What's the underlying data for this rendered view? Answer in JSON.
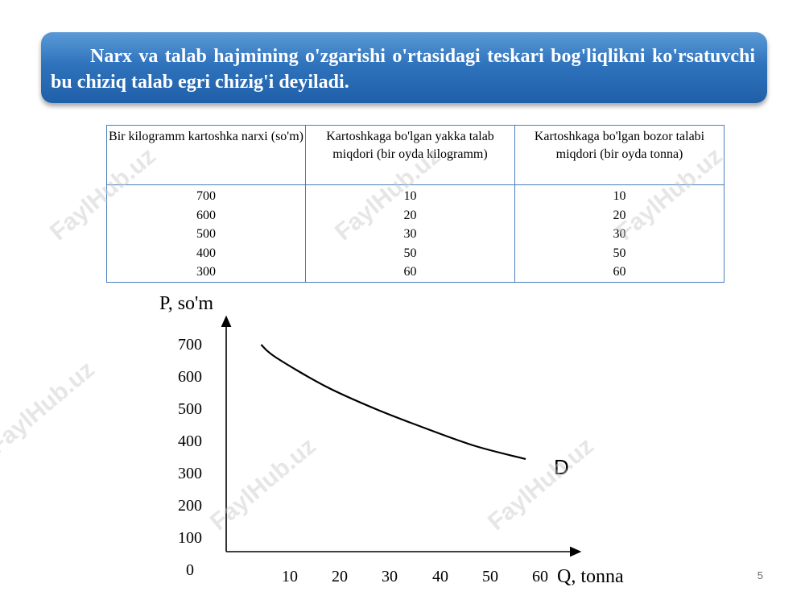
{
  "header": {
    "text": "Narx va talab hajmining o'zgarishi o'rtasidagi teskari bog'liqlikni ko'rsatuvchi bu chiziq talab egri chizig'i deyiladi."
  },
  "table": {
    "headers": [
      "Bir kilogramm kartoshka narxi (so'm)",
      "Kartoshkaga bo'lgan yakka talab miqdori (bir oyda kilogramm)",
      "Kartoshkaga bo'lgan bozor talabi miqdori (bir oyda tonna)"
    ],
    "columns": [
      [
        "700",
        "600",
        "500",
        "400",
        "300"
      ],
      [
        "10",
        "20",
        "30",
        "50",
        "60"
      ],
      [
        "10",
        "20",
        "30",
        "50",
        "60"
      ]
    ]
  },
  "chart_data": {
    "type": "line",
    "ylabel": "P, so'm",
    "xlabel": "Q, tonna",
    "x_ticks": [
      "10",
      "20",
      "30",
      "40",
      "50",
      "60"
    ],
    "y_ticks": [
      "0",
      "100",
      "200",
      "300",
      "400",
      "500",
      "600",
      "700"
    ],
    "xlim": [
      0,
      66
    ],
    "ylim": [
      0,
      800
    ],
    "series": [
      {
        "name": "D",
        "x": [
          7,
          10,
          20,
          30,
          40,
          50,
          60
        ],
        "y": [
          700,
          660,
          570,
          500,
          440,
          385,
          345
        ]
      }
    ],
    "grid": false
  },
  "watermark": "FaylHub.uz",
  "page_number": "5",
  "colors": {
    "banner": "#2f73bd",
    "table_border": "#4a7ebb"
  }
}
